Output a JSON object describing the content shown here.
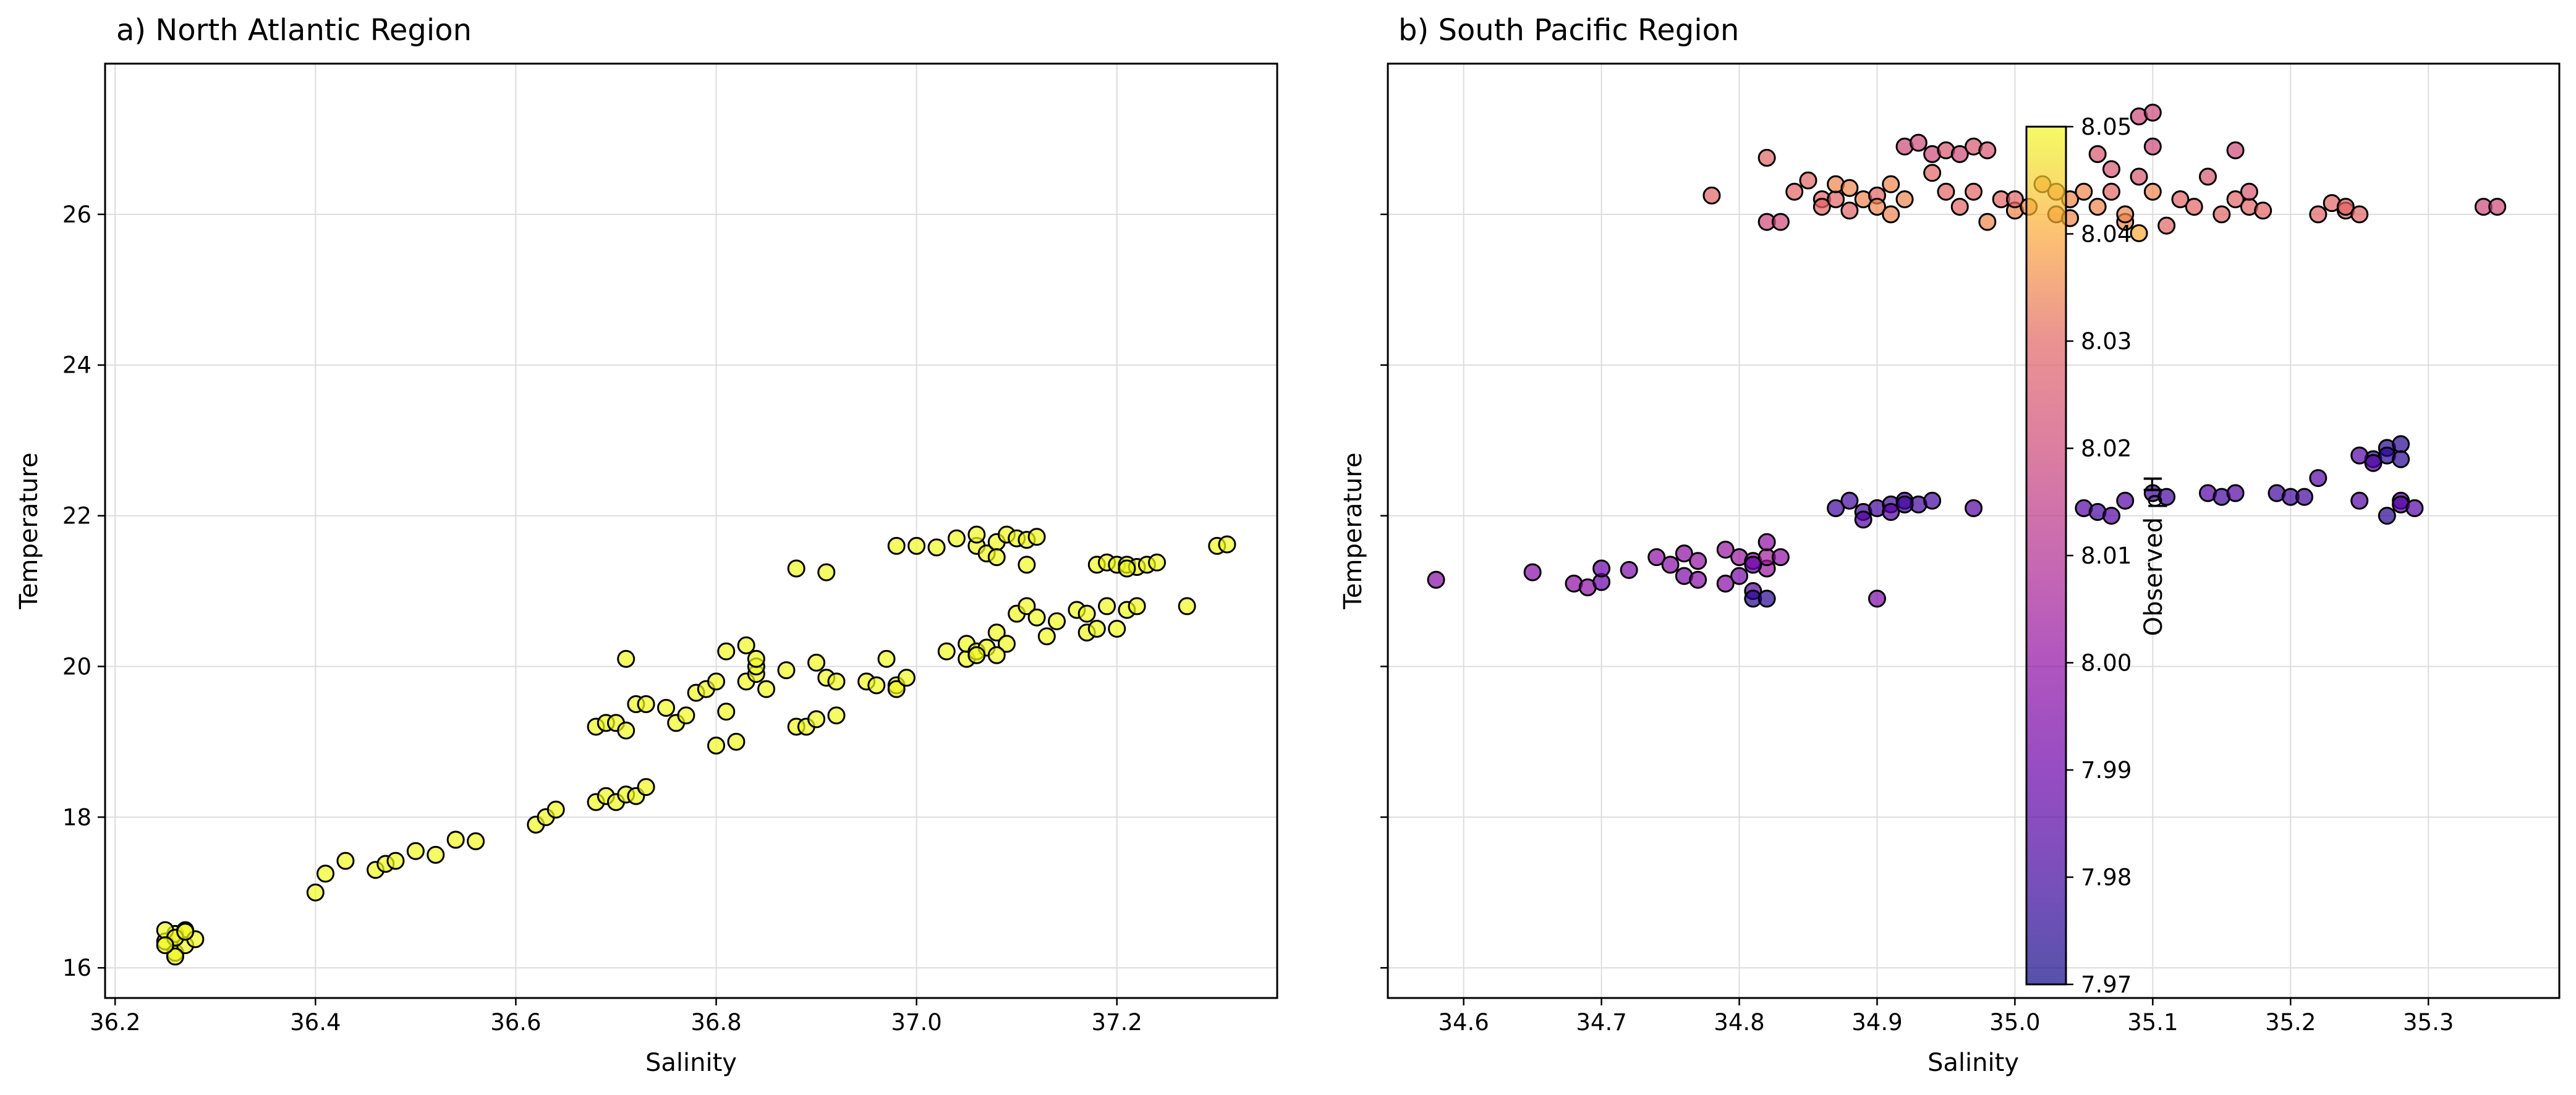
{
  "colorbar": {
    "label": "Observed pH",
    "min": 7.97,
    "max": 8.05,
    "ticks": [
      7.97,
      7.98,
      7.99,
      8.0,
      8.01,
      8.02,
      8.03,
      8.04,
      8.05
    ],
    "tick_labels": [
      "7.97",
      "7.98",
      "7.99",
      "8.00",
      "8.01",
      "8.02",
      "8.03",
      "8.04",
      "8.05"
    ],
    "colormap": "plasma",
    "alpha": 0.7
  },
  "chart_data": [
    {
      "type": "scatter",
      "title": "a) North Atlantic Region",
      "xlabel": "Salinity",
      "ylabel": "Temperature",
      "xlim": [
        36.19,
        37.36
      ],
      "ylim": [
        15.6,
        28.0
      ],
      "xticks": [
        36.2,
        36.4,
        36.6,
        36.8,
        37.0,
        37.2
      ],
      "xtick_labels": [
        "36.2",
        "36.4",
        "36.6",
        "36.8",
        "37.0",
        "37.2"
      ],
      "yticks": [
        16,
        18,
        20,
        22,
        24,
        26
      ],
      "ytick_labels": [
        "16",
        "18",
        "20",
        "22",
        "24",
        "26"
      ],
      "grid": true,
      "marker_edge_color": "#000000",
      "points": [
        [
          36.25,
          16.35
        ],
        [
          36.26,
          16.45
        ],
        [
          36.27,
          16.5
        ],
        [
          36.26,
          16.2
        ],
        [
          36.27,
          16.3
        ],
        [
          36.25,
          16.5
        ],
        [
          36.26,
          16.4
        ],
        [
          36.28,
          16.38
        ],
        [
          36.26,
          16.15
        ],
        [
          36.27,
          16.48
        ],
        [
          36.25,
          16.3
        ],
        [
          36.4,
          17.0
        ],
        [
          36.41,
          17.25
        ],
        [
          36.43,
          17.42
        ],
        [
          36.46,
          17.3
        ],
        [
          36.47,
          17.38
        ],
        [
          36.48,
          17.42
        ],
        [
          36.5,
          17.55
        ],
        [
          36.52,
          17.5
        ],
        [
          36.54,
          17.7
        ],
        [
          36.56,
          17.68
        ],
        [
          36.62,
          17.9
        ],
        [
          36.63,
          18.0
        ],
        [
          36.64,
          18.1
        ],
        [
          36.68,
          18.2
        ],
        [
          36.69,
          18.28
        ],
        [
          36.7,
          18.2
        ],
        [
          36.71,
          18.3
        ],
        [
          36.72,
          18.28
        ],
        [
          36.73,
          18.4
        ],
        [
          36.68,
          19.2
        ],
        [
          36.69,
          19.25
        ],
        [
          36.7,
          19.25
        ],
        [
          36.71,
          19.15
        ],
        [
          36.72,
          19.5
        ],
        [
          36.73,
          19.5
        ],
        [
          36.75,
          19.45
        ],
        [
          36.76,
          19.25
        ],
        [
          36.77,
          19.35
        ],
        [
          36.78,
          19.65
        ],
        [
          36.79,
          19.7
        ],
        [
          36.8,
          19.8
        ],
        [
          36.71,
          20.1
        ],
        [
          36.8,
          18.95
        ],
        [
          36.82,
          19.0
        ],
        [
          36.81,
          19.4
        ],
        [
          36.83,
          19.8
        ],
        [
          36.84,
          19.9
        ],
        [
          36.84,
          20.0
        ],
        [
          36.85,
          19.7
        ],
        [
          36.81,
          20.2
        ],
        [
          36.83,
          20.28
        ],
        [
          36.84,
          20.1
        ],
        [
          36.87,
          19.95
        ],
        [
          36.88,
          19.2
        ],
        [
          36.89,
          19.2
        ],
        [
          36.9,
          19.3
        ],
        [
          36.92,
          19.35
        ],
        [
          36.9,
          20.05
        ],
        [
          36.91,
          19.85
        ],
        [
          36.92,
          19.8
        ],
        [
          36.88,
          21.3
        ],
        [
          36.91,
          21.25
        ],
        [
          36.95,
          19.8
        ],
        [
          36.96,
          19.75
        ],
        [
          36.97,
          20.1
        ],
        [
          36.98,
          19.75
        ],
        [
          36.98,
          19.7
        ],
        [
          36.99,
          19.85
        ],
        [
          37.03,
          20.2
        ],
        [
          37.05,
          20.1
        ],
        [
          37.05,
          20.3
        ],
        [
          37.06,
          20.2
        ],
        [
          37.07,
          20.25
        ],
        [
          37.08,
          20.45
        ],
        [
          37.09,
          20.3
        ],
        [
          37.1,
          20.7
        ],
        [
          37.11,
          20.8
        ],
        [
          37.12,
          20.65
        ],
        [
          37.13,
          20.4
        ],
        [
          37.14,
          20.6
        ],
        [
          37.08,
          20.15
        ],
        [
          37.06,
          20.15
        ],
        [
          36.98,
          21.6
        ],
        [
          37.0,
          21.6
        ],
        [
          37.02,
          21.58
        ],
        [
          37.04,
          21.7
        ],
        [
          37.06,
          21.6
        ],
        [
          37.07,
          21.5
        ],
        [
          37.08,
          21.65
        ],
        [
          37.09,
          21.75
        ],
        [
          37.1,
          21.7
        ],
        [
          37.11,
          21.68
        ],
        [
          37.12,
          21.72
        ],
        [
          37.11,
          21.35
        ],
        [
          37.06,
          21.75
        ],
        [
          37.08,
          21.45
        ],
        [
          37.16,
          20.75
        ],
        [
          37.17,
          20.7
        ],
        [
          37.17,
          20.45
        ],
        [
          37.18,
          20.5
        ],
        [
          37.2,
          20.5
        ],
        [
          37.21,
          20.75
        ],
        [
          37.22,
          20.8
        ],
        [
          37.19,
          20.8
        ],
        [
          37.27,
          20.8
        ],
        [
          37.18,
          21.35
        ],
        [
          37.19,
          21.38
        ],
        [
          37.2,
          21.35
        ],
        [
          37.21,
          21.35
        ],
        [
          37.22,
          21.32
        ],
        [
          37.23,
          21.35
        ],
        [
          37.24,
          21.38
        ],
        [
          37.21,
          21.3
        ],
        [
          37.3,
          21.6
        ],
        [
          37.31,
          21.62
        ]
      ],
      "point_color_value": 8.05
    },
    {
      "type": "scatter",
      "title": "b) South Pacific Region",
      "xlabel": "Salinity",
      "ylabel": "Temperature",
      "xlim": [
        34.545,
        35.395
      ],
      "ylim": [
        15.6,
        28.0
      ],
      "xticks": [
        34.6,
        34.7,
        34.8,
        34.9,
        35.0,
        35.1,
        35.2,
        35.3
      ],
      "xtick_labels": [
        "34.6",
        "34.7",
        "34.8",
        "34.9",
        "35.0",
        "35.1",
        "35.2",
        "35.3"
      ],
      "yticks": [
        16,
        18,
        20,
        22,
        24,
        26
      ],
      "ytick_labels": [
        "",
        "",
        "",
        "",
        "",
        ""
      ],
      "grid": true,
      "marker_edge_color": "#000000",
      "points": [
        [
          34.58,
          21.15,
          7.998
        ],
        [
          34.65,
          21.25,
          7.998
        ],
        [
          34.68,
          21.1,
          8.0
        ],
        [
          34.69,
          21.05,
          8.0
        ],
        [
          34.7,
          21.12,
          7.99
        ],
        [
          34.7,
          21.3,
          7.99
        ],
        [
          34.72,
          21.28,
          7.995
        ],
        [
          34.74,
          21.45,
          8.0
        ],
        [
          34.75,
          21.35,
          7.998
        ],
        [
          34.76,
          21.2,
          7.995
        ],
        [
          34.76,
          21.5,
          8.0
        ],
        [
          34.77,
          21.4,
          8.001
        ],
        [
          34.77,
          21.15,
          7.998
        ],
        [
          34.79,
          21.55,
          8.002
        ],
        [
          34.79,
          21.1,
          7.998
        ],
        [
          34.8,
          21.45,
          8.003
        ],
        [
          34.8,
          21.2,
          7.993
        ],
        [
          34.81,
          21.4,
          8.0
        ],
        [
          34.81,
          21.0,
          7.985
        ],
        [
          34.81,
          20.9,
          7.975
        ],
        [
          34.82,
          20.9,
          7.975
        ],
        [
          34.82,
          21.3,
          8.002
        ],
        [
          34.82,
          21.45,
          8.005
        ],
        [
          34.83,
          21.45,
          8.0
        ],
        [
          34.82,
          21.65,
          8.0
        ],
        [
          34.81,
          21.35,
          7.99
        ],
        [
          34.87,
          22.1,
          7.98
        ],
        [
          34.88,
          22.2,
          7.98
        ],
        [
          34.89,
          22.05,
          7.98
        ],
        [
          34.89,
          21.95,
          7.985
        ],
        [
          34.9,
          22.1,
          7.98
        ],
        [
          34.91,
          22.15,
          7.98
        ],
        [
          34.91,
          22.05,
          7.985
        ],
        [
          34.92,
          22.2,
          7.98
        ],
        [
          34.93,
          22.15,
          7.98
        ],
        [
          34.94,
          22.2,
          7.98
        ],
        [
          34.97,
          22.1,
          7.985
        ],
        [
          34.9,
          20.9,
          7.995
        ],
        [
          34.92,
          22.15,
          7.98
        ],
        [
          35.05,
          22.1,
          7.985
        ],
        [
          35.06,
          22.05,
          7.98
        ],
        [
          35.07,
          22.0,
          7.985
        ],
        [
          35.08,
          22.2,
          7.985
        ],
        [
          35.1,
          22.3,
          7.98
        ],
        [
          35.11,
          22.25,
          7.98
        ],
        [
          35.14,
          22.3,
          7.985
        ],
        [
          35.15,
          22.25,
          7.98
        ],
        [
          35.16,
          22.3,
          7.985
        ],
        [
          35.19,
          22.3,
          7.98
        ],
        [
          35.2,
          22.25,
          7.98
        ],
        [
          35.21,
          22.25,
          7.98
        ],
        [
          35.22,
          22.5,
          7.985
        ],
        [
          35.25,
          22.2,
          7.985
        ],
        [
          35.26,
          22.75,
          7.975
        ],
        [
          35.27,
          22.9,
          7.975
        ],
        [
          35.27,
          22.8,
          7.975
        ],
        [
          35.28,
          22.95,
          7.975
        ],
        [
          35.28,
          22.75,
          7.975
        ],
        [
          35.28,
          22.2,
          7.985
        ],
        [
          35.28,
          22.15,
          7.985
        ],
        [
          35.29,
          22.1,
          7.985
        ],
        [
          35.27,
          22.0,
          7.975
        ],
        [
          35.26,
          22.7,
          7.985
        ],
        [
          35.25,
          22.8,
          7.985
        ],
        [
          34.78,
          26.25,
          8.03
        ],
        [
          34.82,
          26.75,
          8.03
        ],
        [
          34.82,
          25.9,
          8.02
        ],
        [
          34.83,
          25.9,
          8.02
        ],
        [
          34.84,
          26.3,
          8.03
        ],
        [
          34.85,
          26.45,
          8.03
        ],
        [
          34.86,
          26.2,
          8.03
        ],
        [
          34.86,
          26.1,
          8.03
        ],
        [
          34.87,
          26.2,
          8.03
        ],
        [
          34.87,
          26.4,
          8.035
        ],
        [
          34.88,
          26.35,
          8.035
        ],
        [
          34.88,
          26.05,
          8.03
        ],
        [
          34.89,
          26.2,
          8.035
        ],
        [
          34.9,
          26.25,
          8.03
        ],
        [
          34.9,
          26.1,
          8.035
        ],
        [
          34.91,
          26.0,
          8.035
        ],
        [
          34.91,
          26.4,
          8.035
        ],
        [
          34.92,
          26.2,
          8.035
        ],
        [
          34.92,
          26.9,
          8.02
        ],
        [
          34.93,
          26.95,
          8.02
        ],
        [
          34.94,
          26.8,
          8.02
        ],
        [
          34.94,
          26.55,
          8.03
        ],
        [
          34.95,
          26.85,
          8.025
        ],
        [
          34.95,
          26.3,
          8.03
        ],
        [
          34.96,
          26.8,
          8.02
        ],
        [
          34.96,
          26.1,
          8.03
        ],
        [
          34.97,
          26.9,
          8.025
        ],
        [
          34.97,
          26.3,
          8.03
        ],
        [
          34.98,
          26.85,
          8.025
        ],
        [
          34.98,
          25.9,
          8.035
        ],
        [
          34.99,
          26.2,
          8.03
        ],
        [
          35.0,
          26.05,
          8.035
        ],
        [
          35.0,
          26.2,
          8.03
        ],
        [
          35.01,
          26.1,
          8.035
        ],
        [
          35.02,
          26.4,
          8.035
        ],
        [
          35.03,
          26.3,
          8.035
        ],
        [
          35.03,
          26.0,
          8.035
        ],
        [
          35.04,
          26.2,
          8.035
        ],
        [
          35.04,
          25.95,
          8.035
        ],
        [
          35.05,
          26.3,
          8.035
        ],
        [
          35.06,
          26.1,
          8.035
        ],
        [
          35.06,
          26.8,
          8.025
        ],
        [
          35.07,
          26.6,
          8.025
        ],
        [
          35.07,
          26.3,
          8.03
        ],
        [
          35.08,
          25.9,
          8.035
        ],
        [
          35.08,
          26.0,
          8.035
        ],
        [
          35.09,
          26.5,
          8.025
        ],
        [
          35.09,
          27.3,
          8.02
        ],
        [
          35.09,
          25.75,
          8.04
        ],
        [
          35.1,
          26.3,
          8.035
        ],
        [
          35.1,
          27.35,
          8.02
        ],
        [
          35.1,
          26.9,
          8.02
        ],
        [
          35.11,
          25.85,
          8.03
        ],
        [
          35.12,
          26.2,
          8.03
        ],
        [
          35.13,
          26.1,
          8.03
        ],
        [
          35.14,
          26.5,
          8.025
        ],
        [
          35.15,
          26.0,
          8.03
        ],
        [
          35.16,
          26.85,
          8.02
        ],
        [
          35.16,
          26.2,
          8.03
        ],
        [
          35.17,
          26.1,
          8.03
        ],
        [
          35.17,
          26.3,
          8.025
        ],
        [
          35.18,
          26.05,
          8.03
        ],
        [
          35.22,
          26.0,
          8.03
        ],
        [
          35.23,
          26.15,
          8.03
        ],
        [
          35.24,
          26.05,
          8.03
        ],
        [
          35.24,
          26.1,
          8.03
        ],
        [
          35.25,
          26.0,
          8.03
        ],
        [
          35.34,
          26.1,
          8.02
        ],
        [
          35.35,
          26.1,
          8.02
        ]
      ]
    }
  ]
}
